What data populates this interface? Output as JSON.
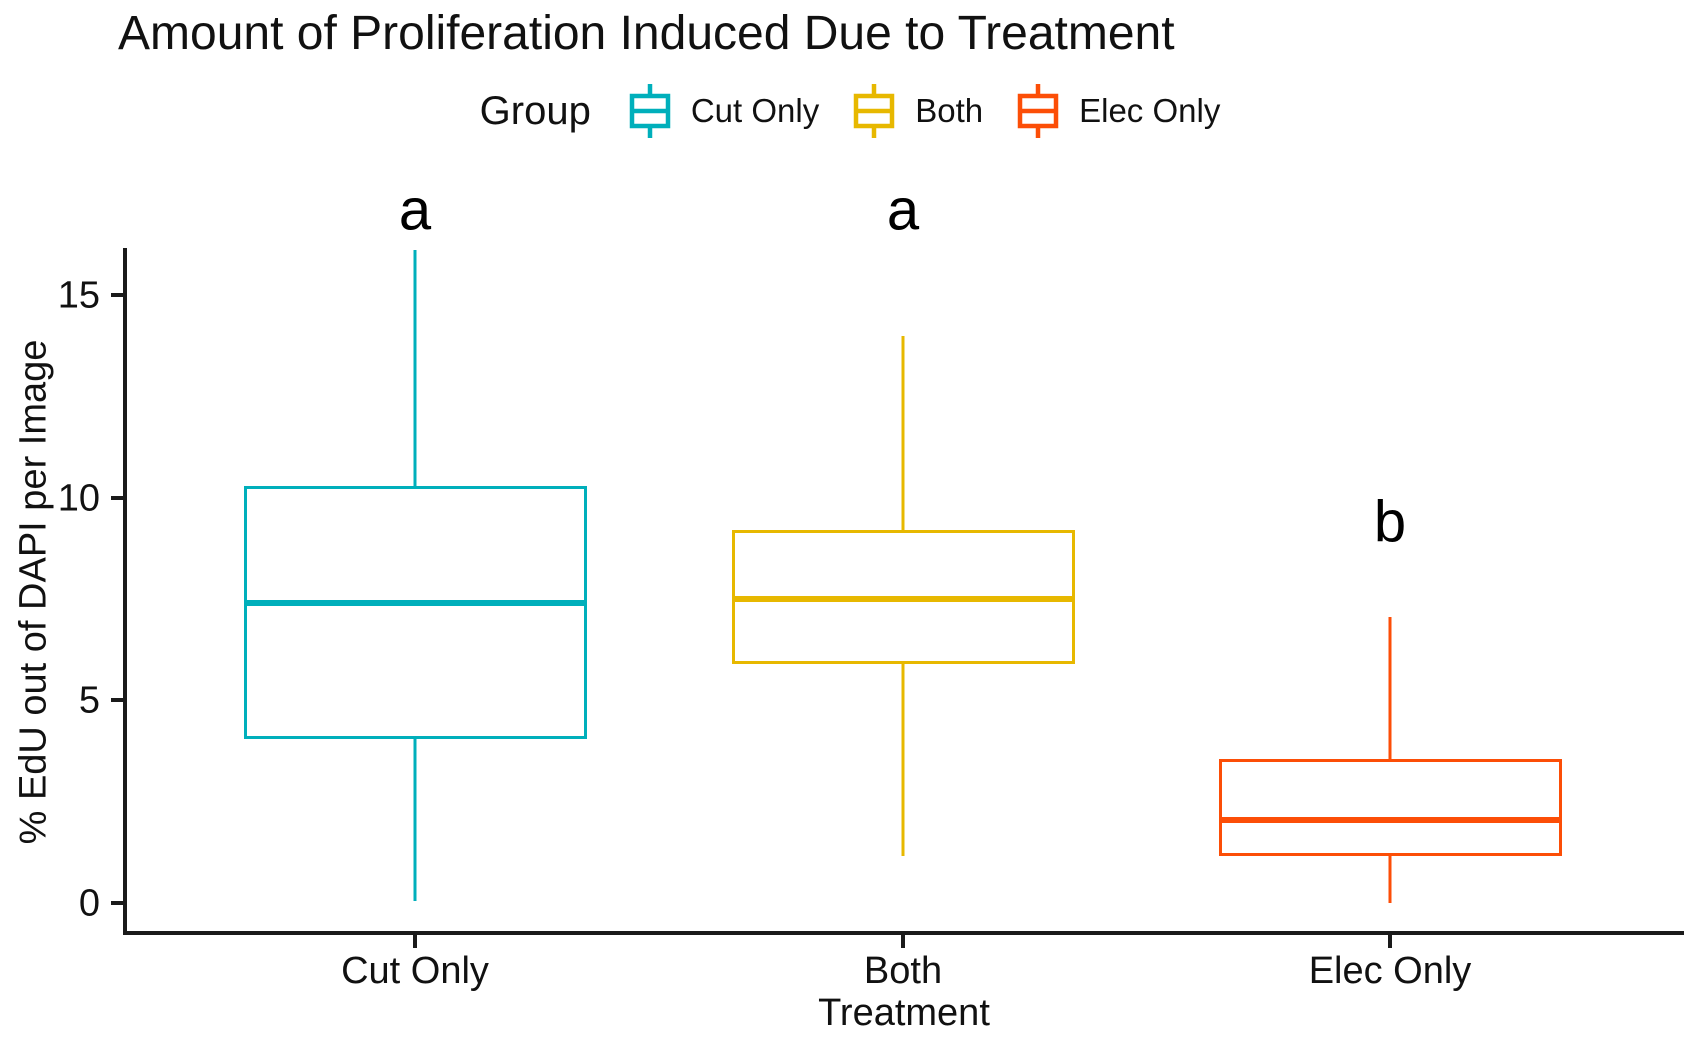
{
  "chart_data": {
    "type": "boxplot",
    "title": "Amount of Proliferation Induced Due to Treatment",
    "xlabel": "Treatment",
    "ylabel": "% EdU out of DAPI per Image",
    "legend_title": "Group",
    "legend_position": "top",
    "grid": false,
    "ylim": [
      -0.75,
      16.9
    ],
    "yticks": [
      0,
      5,
      10,
      15
    ],
    "categories": [
      "Cut Only",
      "Both",
      "Elec Only"
    ],
    "series": [
      {
        "name": "Cut Only",
        "color": "#00AFBB",
        "min": 0.05,
        "q1": 4.05,
        "median": 7.4,
        "q3": 10.3,
        "max": 16.1,
        "sig_label": "a",
        "sig_label_y": 17.1
      },
      {
        "name": "Both",
        "color": "#E7B800",
        "min": 1.15,
        "q1": 5.9,
        "median": 7.5,
        "q3": 9.2,
        "max": 14.0,
        "sig_label": "a",
        "sig_label_y": 17.1
      },
      {
        "name": "Elec Only",
        "color": "#FC4E07",
        "min": 0.0,
        "q1": 1.15,
        "median": 2.05,
        "q3": 3.55,
        "max": 7.05,
        "sig_label": "b",
        "sig_label_y": 9.4
      }
    ]
  }
}
